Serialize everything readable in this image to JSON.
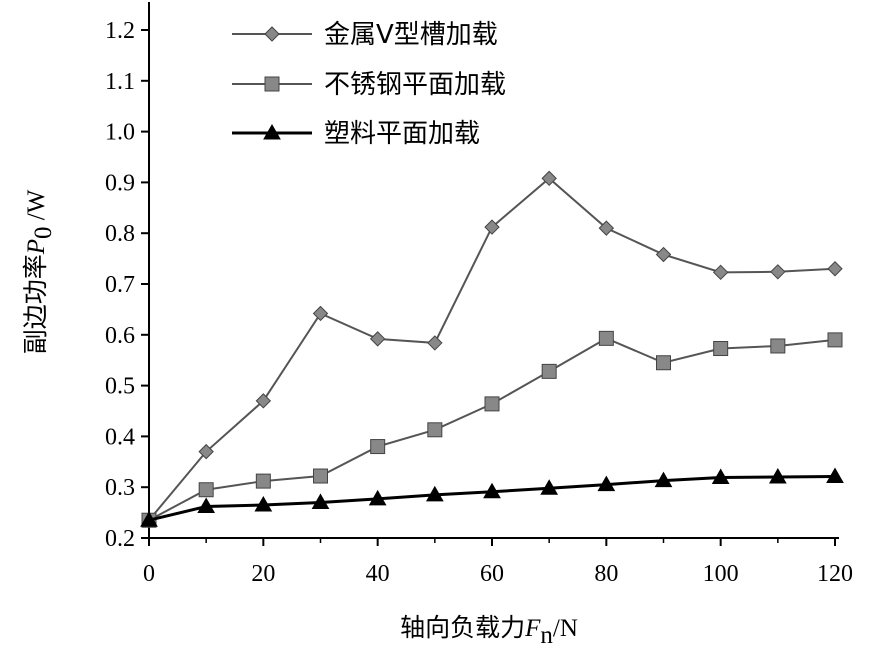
{
  "chart_data": {
    "type": "line",
    "title": "",
    "xlabel": {
      "prefix": "轴向负载力",
      "var": "F",
      "sub": "n",
      "suffix": "/N"
    },
    "ylabel": {
      "prefix": "副边功率",
      "var": "P",
      "sub": "0",
      "suffix": " /W"
    },
    "xlim": [
      0,
      120
    ],
    "ylim": [
      0.2,
      1.2
    ],
    "x_ticks": [
      "0",
      "20",
      "40",
      "60",
      "80",
      "100",
      "120"
    ],
    "y_ticks": [
      "0.2",
      "0.3",
      "0.4",
      "0.5",
      "0.6",
      "0.7",
      "0.8",
      "0.9",
      "1.0",
      "1.1",
      "1.2"
    ],
    "x": [
      0,
      10,
      20,
      30,
      40,
      50,
      60,
      70,
      80,
      90,
      100,
      110,
      120
    ],
    "grid": false,
    "legend_position": "top-left",
    "series": [
      {
        "name": "金属V型槽加载",
        "marker": "diamond",
        "line_color": "#555555",
        "marker_color": "#888888",
        "values": [
          0.235,
          0.37,
          0.47,
          0.642,
          0.592,
          0.584,
          0.812,
          0.908,
          0.81,
          0.758,
          0.723,
          0.724,
          0.73
        ]
      },
      {
        "name": "不锈钢平面加载",
        "marker": "square",
        "line_color": "#555555",
        "marker_color": "#888888",
        "values": [
          0.235,
          0.295,
          0.312,
          0.322,
          0.38,
          0.413,
          0.464,
          0.528,
          0.593,
          0.545,
          0.573,
          0.578,
          0.59
        ]
      },
      {
        "name": "塑料平面加载",
        "marker": "triangle",
        "line_color": "#000000",
        "marker_color": "#000000",
        "values": [
          0.235,
          0.262,
          0.265,
          0.27,
          0.277,
          0.285,
          0.291,
          0.298,
          0.305,
          0.313,
          0.319,
          0.32,
          0.321
        ]
      }
    ]
  }
}
